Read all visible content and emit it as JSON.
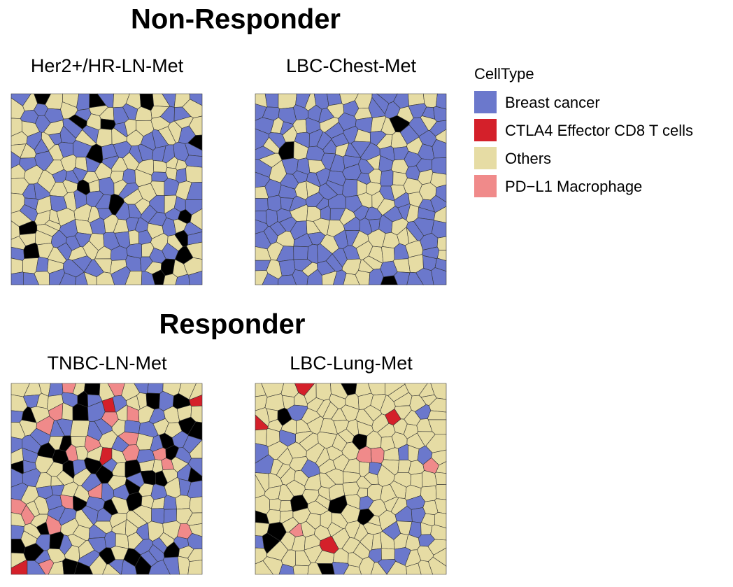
{
  "groups": [
    {
      "title": "Non-Responder",
      "panels": [
        {
          "title": "Her2+/HR-LN-Met"
        },
        {
          "title": "LBC-Chest-Met"
        }
      ]
    },
    {
      "title": "Responder",
      "panels": [
        {
          "title": "TNBC-LN-Met"
        },
        {
          "title": "LBC-Lung-Met"
        }
      ]
    }
  ],
  "legend": {
    "title": "CellType",
    "items": [
      {
        "label": "Breast cancer",
        "color": "#6b78cc"
      },
      {
        "label": "CTLA4 Effector CD8 T cells",
        "color": "#d4202a"
      },
      {
        "label": "Others",
        "color": "#e6dca4"
      },
      {
        "label": "PD−L1 Macrophage",
        "color": "#f08a8a"
      }
    ]
  }
}
